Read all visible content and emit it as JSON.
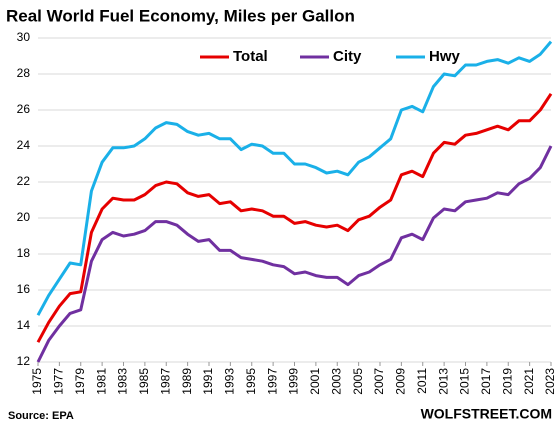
{
  "chart_data": {
    "type": "line",
    "title": "Real World Fuel Economy, Miles per Gallon",
    "source": "Source: EPA",
    "credit": "WOLFSTREET.COM",
    "x": [
      1975,
      1976,
      1977,
      1978,
      1979,
      1980,
      1981,
      1982,
      1983,
      1984,
      1985,
      1986,
      1987,
      1988,
      1989,
      1990,
      1991,
      1992,
      1993,
      1994,
      1995,
      1996,
      1997,
      1998,
      1999,
      2000,
      2001,
      2002,
      2003,
      2004,
      2005,
      2006,
      2007,
      2008,
      2009,
      2010,
      2011,
      2012,
      2013,
      2014,
      2015,
      2016,
      2017,
      2018,
      2019,
      2020,
      2021,
      2022,
      2023
    ],
    "xlim": [
      1975,
      2023
    ],
    "xticks": [
      1975,
      1977,
      1979,
      1981,
      1983,
      1985,
      1987,
      1989,
      1991,
      1993,
      1995,
      1997,
      1999,
      2001,
      2003,
      2005,
      2007,
      2009,
      2011,
      2013,
      2015,
      2017,
      2019,
      2021,
      2023
    ],
    "ylim": [
      12,
      30
    ],
    "yticks": [
      12,
      14,
      16,
      18,
      20,
      22,
      24,
      26,
      28,
      30
    ],
    "grid": true,
    "legend": "top",
    "series": [
      {
        "name": "Total",
        "color": "#e60000",
        "values": [
          13.1,
          14.2,
          15.1,
          15.8,
          15.9,
          19.2,
          20.5,
          21.1,
          21.0,
          21.0,
          21.3,
          21.8,
          22.0,
          21.9,
          21.4,
          21.2,
          21.3,
          20.8,
          20.9,
          20.4,
          20.5,
          20.4,
          20.1,
          20.1,
          19.7,
          19.8,
          19.6,
          19.5,
          19.6,
          19.3,
          19.9,
          20.1,
          20.6,
          21.0,
          22.4,
          22.6,
          22.3,
          23.6,
          24.2,
          24.1,
          24.6,
          24.7,
          24.9,
          25.1,
          24.9,
          25.4,
          25.4,
          26.0,
          26.9
        ]
      },
      {
        "name": "City",
        "color": "#7030a0",
        "values": [
          12.0,
          13.2,
          14.0,
          14.7,
          14.9,
          17.6,
          18.8,
          19.2,
          19.0,
          19.1,
          19.3,
          19.8,
          19.8,
          19.6,
          19.1,
          18.7,
          18.8,
          18.2,
          18.2,
          17.8,
          17.7,
          17.6,
          17.4,
          17.3,
          16.9,
          17.0,
          16.8,
          16.7,
          16.7,
          16.3,
          16.8,
          17.0,
          17.4,
          17.7,
          18.9,
          19.1,
          18.8,
          20.0,
          20.5,
          20.4,
          20.9,
          21.0,
          21.1,
          21.4,
          21.3,
          21.9,
          22.2,
          22.8,
          24.0
        ]
      },
      {
        "name": "Hwy",
        "color": "#1ab0e8",
        "values": [
          14.6,
          15.7,
          16.6,
          17.5,
          17.4,
          21.5,
          23.1,
          23.9,
          23.9,
          24.0,
          24.4,
          25.0,
          25.3,
          25.2,
          24.8,
          24.6,
          24.7,
          24.4,
          24.4,
          23.8,
          24.1,
          24.0,
          23.6,
          23.6,
          23.0,
          23.0,
          22.8,
          22.5,
          22.6,
          22.4,
          23.1,
          23.4,
          23.9,
          24.4,
          26.0,
          26.2,
          25.9,
          27.3,
          28.0,
          27.9,
          28.5,
          28.5,
          28.7,
          28.8,
          28.6,
          28.9,
          28.7,
          29.1,
          29.8
        ]
      }
    ]
  }
}
